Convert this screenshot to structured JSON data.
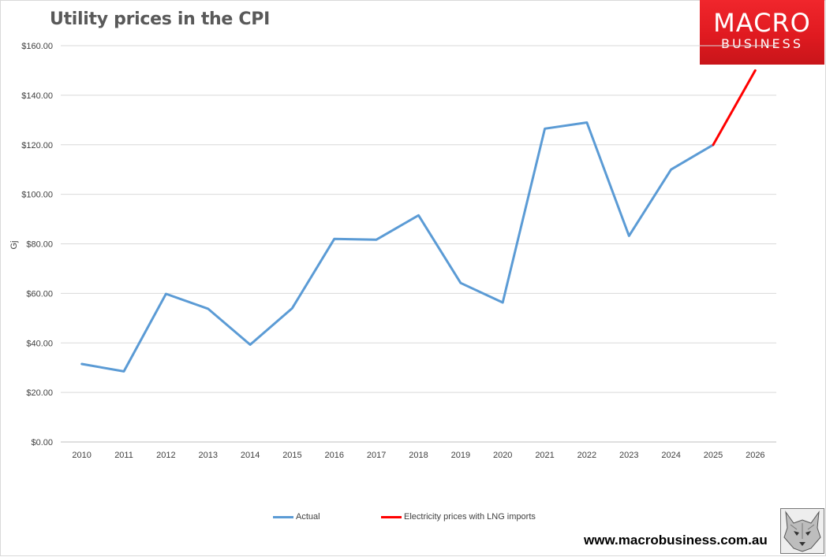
{
  "brand": {
    "logo_line1": "MACRO",
    "logo_line2": "BUSINESS",
    "logo_color": "#e01a20",
    "website": "www.macrobusiness.com.au",
    "mascot_icon": "wolf-head-icon"
  },
  "chart_data": {
    "type": "line",
    "title": "Utility prices in the CPI",
    "xlabel": "",
    "ylabel": "Gj",
    "ylim": [
      0,
      160
    ],
    "yticks": [
      "$0.00",
      "$20.00",
      "$40.00",
      "$60.00",
      "$80.00",
      "$100.00",
      "$120.00",
      "$140.00",
      "$160.00"
    ],
    "categories": [
      "2010",
      "2011",
      "2012",
      "2013",
      "2014",
      "2015",
      "2016",
      "2017",
      "2018",
      "2019",
      "2020",
      "2021",
      "2022",
      "2023",
      "2024",
      "2025",
      "2026"
    ],
    "grid": true,
    "legend_position": "bottom",
    "series": [
      {
        "name": "Actual",
        "color": "#5b9bd5",
        "values": [
          31.5,
          28.5,
          59.8,
          53.8,
          39.3,
          54.0,
          82.0,
          81.7,
          91.5,
          64.2,
          56.3,
          126.5,
          129.0,
          83.2,
          110.0,
          120.0,
          null
        ]
      },
      {
        "name": "Electricity prices with LNG imports",
        "color": "#ff0000",
        "values": [
          null,
          null,
          null,
          null,
          null,
          null,
          null,
          null,
          null,
          null,
          null,
          null,
          null,
          null,
          null,
          120.0,
          150.0
        ]
      }
    ]
  }
}
